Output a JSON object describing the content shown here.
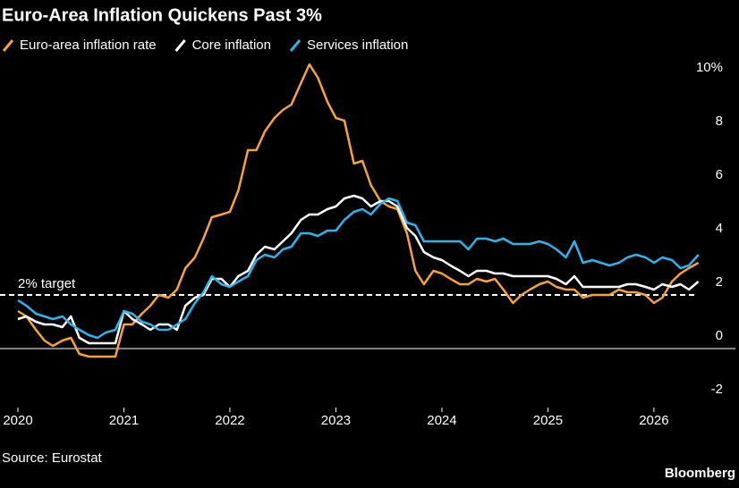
{
  "chart_data": {
    "type": "line",
    "title": "Euro-Area Inflation Quickens Past 3%",
    "x": [
      2020,
      2020.08,
      2020.17,
      2020.25,
      2020.33,
      2020.42,
      2020.5,
      2020.58,
      2020.67,
      2020.75,
      2020.83,
      2020.92,
      2021,
      2021.08,
      2021.17,
      2021.25,
      2021.33,
      2021.42,
      2021.5,
      2021.58,
      2021.67,
      2021.75,
      2021.83,
      2021.92,
      2022,
      2022.08,
      2022.17,
      2022.25,
      2022.33,
      2022.42,
      2022.5,
      2022.58,
      2022.67,
      2022.75,
      2022.83,
      2022.92,
      2023,
      2023.08,
      2023.17,
      2023.25,
      2023.33,
      2023.42,
      2023.5,
      2023.58,
      2023.67,
      2023.75,
      2023.83,
      2023.92,
      2024,
      2024.08,
      2024.17,
      2024.25,
      2024.33,
      2024.42,
      2024.5,
      2024.58,
      2024.67,
      2024.75,
      2024.83,
      2024.92,
      2025,
      2025.08,
      2025.17,
      2025.25,
      2025.33,
      2025.42,
      2025.5,
      2025.58,
      2025.67,
      2025.75,
      2025.83,
      2025.92,
      2026,
      2026.08,
      2026.17,
      2026.25,
      2026.33,
      2026.42
    ],
    "series": [
      {
        "name": "Euro-area inflation rate",
        "color": "#f5a33a",
        "values": [
          1.4,
          1.2,
          0.7,
          0.3,
          0.1,
          0.3,
          0.4,
          -0.2,
          -0.3,
          -0.3,
          -0.3,
          -0.3,
          0.9,
          0.9,
          1.3,
          1.6,
          2.0,
          1.9,
          2.2,
          3.0,
          3.4,
          4.1,
          4.9,
          5.0,
          5.1,
          5.9,
          7.4,
          7.4,
          8.1,
          8.6,
          8.9,
          9.1,
          9.9,
          10.6,
          10.1,
          9.2,
          8.6,
          8.5,
          6.9,
          7.0,
          6.1,
          5.5,
          5.3,
          5.2,
          4.3,
          2.9,
          2.4,
          2.9,
          2.8,
          2.6,
          2.4,
          2.4,
          2.6,
          2.5,
          2.6,
          2.2,
          1.7,
          2.0,
          2.2,
          2.4,
          2.5,
          2.3,
          2.2,
          2.2,
          1.9,
          2.0,
          2.0,
          2.0,
          2.2,
          2.1,
          2.1,
          2.0,
          1.7,
          1.9,
          2.5,
          2.8,
          3.0,
          3.2
        ]
      },
      {
        "name": "Core inflation",
        "color": "#ffffff",
        "values": [
          1.1,
          1.2,
          1.0,
          0.9,
          0.9,
          0.8,
          1.2,
          0.4,
          0.2,
          0.2,
          0.2,
          0.2,
          1.4,
          1.1,
          0.9,
          0.7,
          0.9,
          0.9,
          0.7,
          1.6,
          1.9,
          2.0,
          2.6,
          2.6,
          2.3,
          2.7,
          2.9,
          3.5,
          3.8,
          3.7,
          4.0,
          4.3,
          4.8,
          5.0,
          5.0,
          5.2,
          5.3,
          5.6,
          5.7,
          5.6,
          5.3,
          5.5,
          5.5,
          5.3,
          4.5,
          4.2,
          3.6,
          3.4,
          3.3,
          3.1,
          2.9,
          2.7,
          2.9,
          2.9,
          2.8,
          2.8,
          2.7,
          2.7,
          2.7,
          2.7,
          2.7,
          2.6,
          2.4,
          2.7,
          2.3,
          2.3,
          2.3,
          2.3,
          2.3,
          2.4,
          2.4,
          2.3,
          2.2,
          2.4,
          2.3,
          2.4,
          2.2,
          2.5
        ]
      },
      {
        "name": "Services inflation",
        "color": "#2fb3ea",
        "values": [
          1.8,
          1.6,
          1.3,
          1.2,
          1.1,
          1.2,
          0.9,
          0.7,
          0.5,
          0.4,
          0.6,
          0.7,
          1.4,
          1.3,
          1.0,
          0.9,
          0.7,
          0.7,
          0.9,
          1.1,
          1.7,
          2.1,
          2.7,
          2.4,
          2.3,
          2.5,
          2.7,
          3.3,
          3.5,
          3.4,
          3.7,
          3.8,
          4.3,
          4.3,
          4.2,
          4.4,
          4.4,
          4.8,
          5.1,
          5.2,
          5.0,
          5.4,
          5.6,
          5.5,
          4.7,
          4.6,
          4.0,
          4.0,
          4.0,
          4.0,
          4.0,
          3.7,
          4.1,
          4.1,
          4.0,
          4.1,
          3.9,
          3.9,
          3.9,
          4.0,
          3.9,
          3.7,
          3.4,
          4.0,
          3.2,
          3.3,
          3.2,
          3.1,
          3.2,
          3.4,
          3.5,
          3.4,
          3.2,
          3.4,
          3.3,
          3.0,
          3.1,
          3.5
        ]
      }
    ],
    "xlim": [
      2020,
      2026.6
    ],
    "xticks": [
      2020,
      2021,
      2022,
      2023,
      2024,
      2025,
      2026
    ],
    "ylim": [
      -2.2,
      10.8
    ],
    "yticks": [
      -2,
      0,
      2,
      4,
      6,
      8,
      {
        "value": 10,
        "label": "10%"
      }
    ],
    "target": {
      "value": 2,
      "label": "2% target"
    },
    "source": "Source: Eurostat",
    "brand": "Bloomberg"
  }
}
